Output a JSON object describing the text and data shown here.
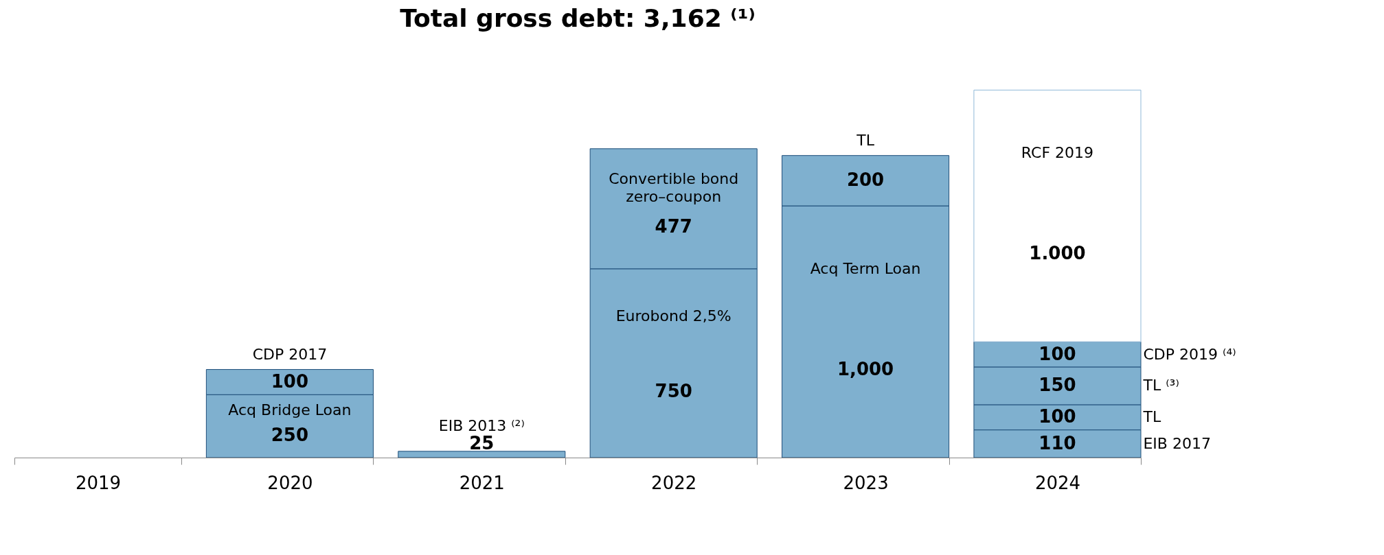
{
  "chart_data": {
    "type": "bar",
    "stacked": true,
    "title": "Total gross debt: 3,162 ⁽¹⁾",
    "categories": [
      "2019",
      "2020",
      "2021",
      "2022",
      "2023",
      "2024"
    ],
    "series": [
      {
        "name": "Acq Bridge Loan",
        "color": "#7fb0cf",
        "values": [
          null,
          250,
          null,
          null,
          null,
          null
        ],
        "value_labels": [
          null,
          "250",
          null,
          null,
          null,
          null
        ]
      },
      {
        "name": "CDP 2017",
        "color": "#7fb0cf",
        "values": [
          null,
          100,
          null,
          null,
          null,
          null
        ],
        "value_labels": [
          null,
          "100",
          null,
          null,
          null,
          null
        ]
      },
      {
        "name": "EIB 2013 ⁽²⁾",
        "color": "#7fb0cf",
        "values": [
          null,
          null,
          25,
          null,
          null,
          null
        ],
        "value_labels": [
          null,
          null,
          "25",
          null,
          null,
          null
        ]
      },
      {
        "name": "Eurobond 2,5%",
        "color": "#7fb0cf",
        "values": [
          null,
          null,
          null,
          750,
          null,
          null
        ],
        "value_labels": [
          null,
          null,
          null,
          "750",
          null,
          null
        ]
      },
      {
        "name": "Convertible bond zero–coupon",
        "color": "#7fb0cf",
        "values": [
          null,
          null,
          null,
          477,
          null,
          null
        ],
        "value_labels": [
          null,
          null,
          null,
          "477",
          null,
          null
        ]
      },
      {
        "name": "Acq Term Loan",
        "color": "#7fb0cf",
        "values": [
          null,
          null,
          null,
          null,
          1000,
          null
        ],
        "value_labels": [
          null,
          null,
          null,
          null,
          "1,000",
          null
        ]
      },
      {
        "name": "TL",
        "color": "#7fb0cf",
        "values": [
          null,
          null,
          null,
          null,
          200,
          null
        ],
        "value_labels": [
          null,
          null,
          null,
          null,
          "200",
          null
        ]
      },
      {
        "name": "EIB 2017",
        "color": "#7fb0cf",
        "values": [
          null,
          null,
          null,
          null,
          null,
          110
        ],
        "value_labels": [
          null,
          null,
          null,
          null,
          null,
          "110"
        ]
      },
      {
        "name": "TL",
        "color": "#7fb0cf",
        "values": [
          null,
          null,
          null,
          null,
          null,
          100
        ],
        "value_labels": [
          null,
          null,
          null,
          null,
          null,
          "100"
        ]
      },
      {
        "name": "TL ⁽³⁾",
        "color": "#7fb0cf",
        "values": [
          null,
          null,
          null,
          null,
          null,
          150
        ],
        "value_labels": [
          null,
          null,
          null,
          null,
          null,
          "150"
        ]
      },
      {
        "name": "CDP 2019 ⁽⁴⁾",
        "color": "#7fb0cf",
        "values": [
          null,
          null,
          null,
          null,
          null,
          100
        ],
        "value_labels": [
          null,
          null,
          null,
          null,
          null,
          "100"
        ]
      },
      {
        "name": "RCF 2019",
        "color": "#ffffff",
        "values": [
          null,
          null,
          null,
          null,
          null,
          1000
        ]
      }
    ],
    "annotations": [
      "1.000"
    ]
  }
}
